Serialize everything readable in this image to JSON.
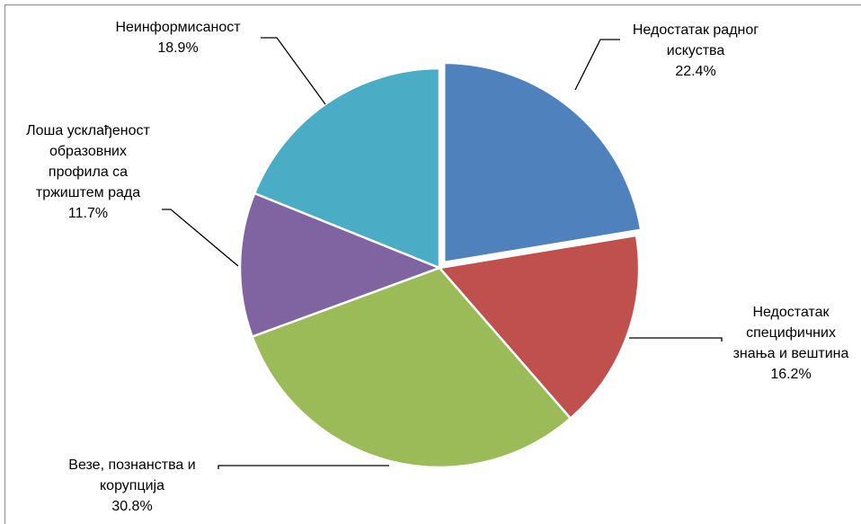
{
  "chart_data": {
    "type": "pie",
    "title": "",
    "slices": [
      {
        "label": [
          "Недостатак радног",
          "искуства"
        ],
        "value": 22.4,
        "value_label": "22.4%",
        "color": "#4F81BD",
        "exploded": true
      },
      {
        "label": [
          "Недостатак",
          "специфичних",
          "знања и вештина"
        ],
        "value": 16.2,
        "value_label": "16.2%",
        "color": "#C0504D",
        "exploded": false
      },
      {
        "label": [
          "Везе, познанства и",
          "корупција"
        ],
        "value": 30.8,
        "value_label": "30.8%",
        "color": "#9BBB59",
        "exploded": false
      },
      {
        "label": [
          "Лоша усклађеност",
          "образовних",
          "профила са",
          "тржиштем рада"
        ],
        "value": 11.7,
        "value_label": "11.7%",
        "color": "#8064A2",
        "exploded": false
      },
      {
        "label": [
          "Неинформисаност"
        ],
        "value": 18.9,
        "value_label": "18.9%",
        "color": "#4BACC6",
        "exploded": false
      }
    ],
    "start_angle": "12 o'clock",
    "direction": "clockwise",
    "legend": "none"
  },
  "frame": {
    "border_color": "#868686"
  }
}
